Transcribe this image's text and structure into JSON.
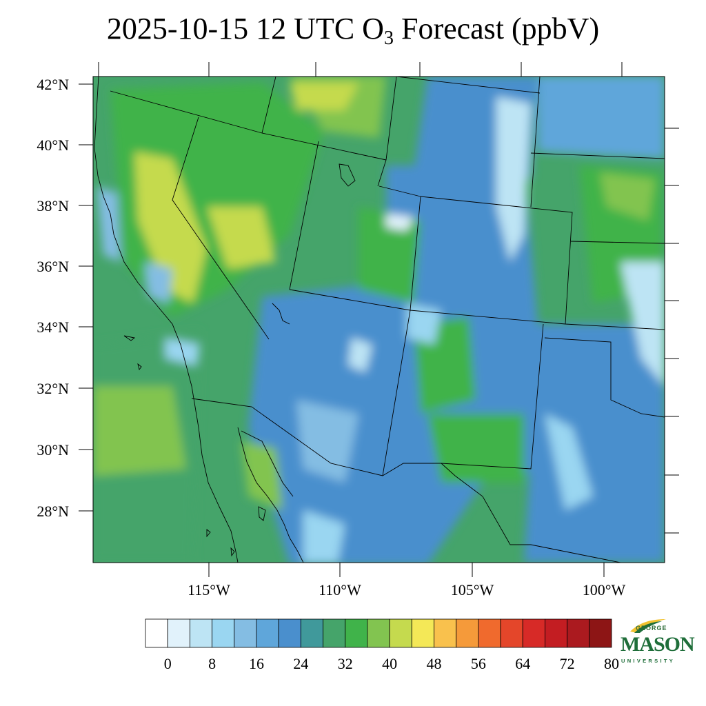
{
  "title": {
    "prefix": "2025-10-15 12 UTC O",
    "subscript": "3",
    "suffix": " Forecast (ppbV)"
  },
  "map": {
    "region": "western United States and northern Mexico",
    "lat_labels": [
      "42°N",
      "40°N",
      "38°N",
      "36°N",
      "34°N",
      "32°N",
      "30°N",
      "28°N"
    ],
    "lon_labels": [
      "115°W",
      "110°W",
      "105°W",
      "100°W"
    ],
    "field_colors": {
      "low": "#4a8fcd",
      "mid": "#40b34a",
      "high": "#c5da4e",
      "very_low": "#bde4f4"
    }
  },
  "colorbar": {
    "colors": [
      "#ffffff",
      "#e1f2fb",
      "#bde4f4",
      "#9ad6f1",
      "#84bde3",
      "#5fa6da",
      "#4a8fcd",
      "#40999b",
      "#45a46a",
      "#40b34a",
      "#82c450",
      "#c5da4e",
      "#f4e857",
      "#f9c14d",
      "#f59a3a",
      "#f06a2d",
      "#e4462a",
      "#d72a27",
      "#c31d22",
      "#ab1a1f",
      "#8d1515"
    ],
    "labels": [
      "0",
      "8",
      "16",
      "24",
      "32",
      "40",
      "48",
      "56",
      "64",
      "72",
      "80"
    ]
  },
  "logo": {
    "line1": "GEORGE",
    "line2": "MASON",
    "line3": "UNIVERSITY",
    "green": "#1f6e3a",
    "gold": "#f2c230"
  }
}
